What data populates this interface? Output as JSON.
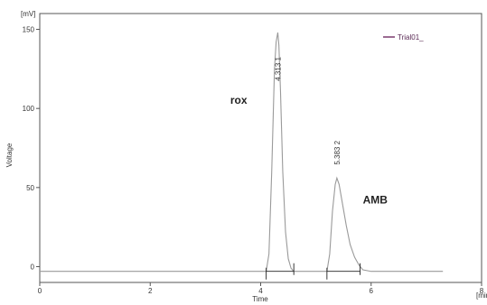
{
  "chart_data": {
    "type": "line",
    "title": "",
    "xlabel": "Time",
    "ylabel": "Voltage",
    "x_unit": "[min]",
    "y_unit": "[mV]",
    "xlim": [
      0,
      8
    ],
    "ylim": [
      -10,
      160
    ],
    "x_ticks": [
      0,
      2,
      4,
      6,
      8
    ],
    "y_ticks": [
      0,
      50,
      100,
      150
    ],
    "x_tick_labels": [
      "0",
      "2",
      "4",
      "6",
      "8"
    ],
    "y_tick_labels": [
      "0",
      "50",
      "100",
      "150"
    ],
    "grid": false,
    "legend": {
      "placement": "top-right",
      "entries": [
        "Trial01_"
      ]
    },
    "series": [
      {
        "name": "Trial01_",
        "color": "#9a9a9a",
        "x": [
          0.0,
          1.0,
          2.0,
          3.0,
          4.0,
          4.1,
          4.15,
          4.2,
          4.25,
          4.28,
          4.31,
          4.33,
          4.36,
          4.4,
          4.45,
          4.5,
          4.55,
          4.6,
          4.65,
          5.2,
          5.25,
          5.3,
          5.35,
          5.38,
          5.42,
          5.48,
          5.55,
          5.62,
          5.7,
          5.78,
          5.85,
          6.0,
          6.5,
          7.0,
          7.3
        ],
        "y": [
          -3.0,
          -3.0,
          -3.0,
          -3.0,
          -3.0,
          -3.0,
          8.0,
          60.0,
          125.0,
          142.0,
          148.0,
          140.0,
          110.0,
          60.0,
          22.0,
          5.0,
          -1.0,
          -3.0,
          -3.0,
          -3.0,
          8.0,
          35.0,
          52.0,
          56.0,
          52.0,
          40.0,
          26.0,
          14.0,
          6.0,
          1.0,
          -2.0,
          -3.0,
          -3.0,
          -3.0,
          -3.0
        ]
      }
    ],
    "peak_labels": [
      {
        "label": "4.313   1",
        "x": 4.313,
        "y": 125
      },
      {
        "label": "5.383   2",
        "x": 5.383,
        "y": 72
      }
    ],
    "annotations": [
      {
        "text": "rox",
        "x": 3.45,
        "y": 103
      },
      {
        "text": "AMB",
        "x": 5.85,
        "y": 40
      }
    ],
    "baseline_segments": [
      {
        "x": [
          4.1,
          4.6
        ],
        "y": -3.0
      },
      {
        "x": [
          5.2,
          5.8
        ],
        "y": -3.0
      }
    ]
  }
}
